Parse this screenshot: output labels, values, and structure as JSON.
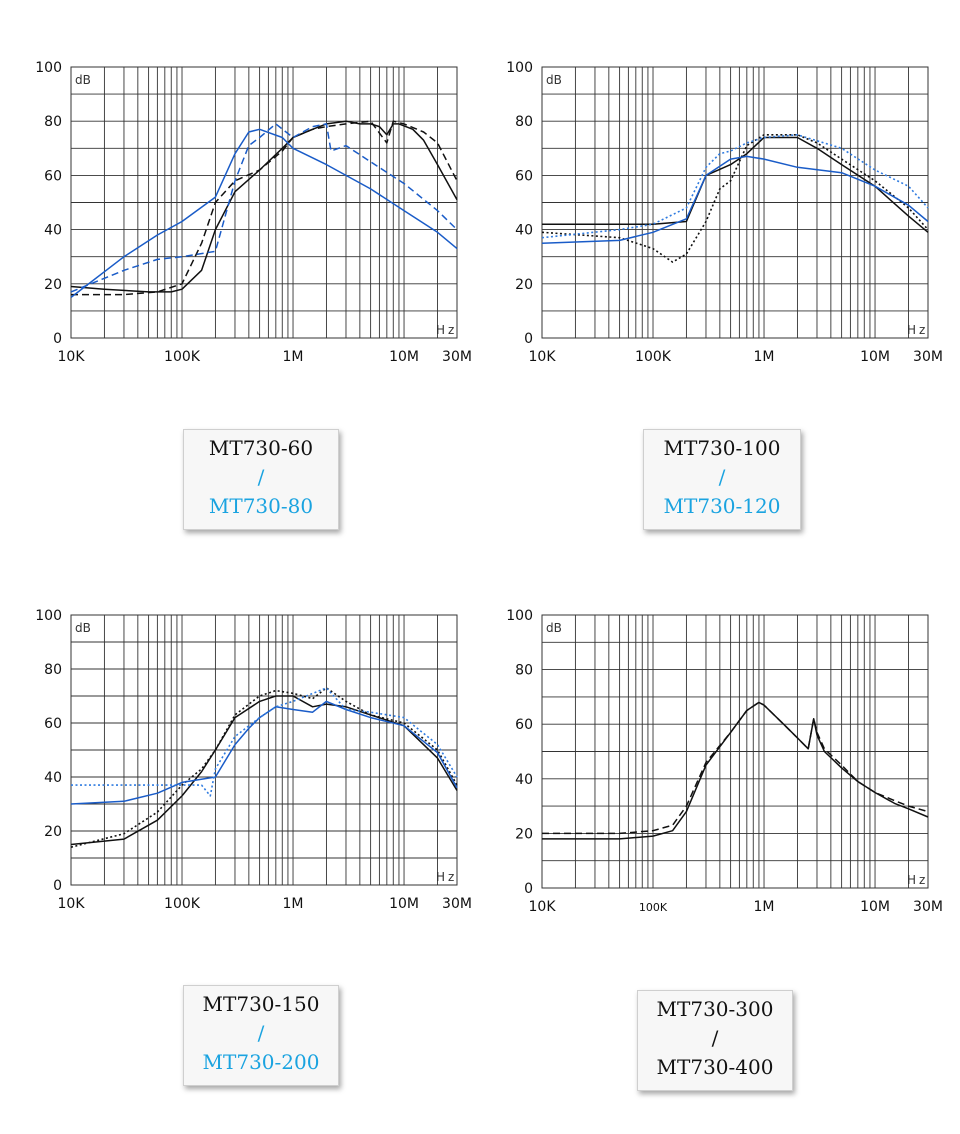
{
  "colors": {
    "black": "#111111",
    "blue": "#1a5cc8",
    "blue_dot": "#2f7be0",
    "cyan_label": "#1aa3e0"
  },
  "chart_data": [
    {
      "type": "line",
      "ylabel": "dB",
      "xlabel": "Hz",
      "x_scale": "log",
      "xlim": [
        10000,
        30000000
      ],
      "ylim": [
        0,
        100
      ],
      "y_ticks": [
        "0",
        "20",
        "40",
        "60",
        "80",
        "100"
      ],
      "x_ticks": [
        {
          "value": 10000,
          "label": "10K"
        },
        {
          "value": 100000,
          "label": "100K"
        },
        {
          "value": 1000000,
          "label": "1M"
        },
        {
          "value": 10000000,
          "label": "10M"
        },
        {
          "value": 30000000,
          "label": "30M"
        }
      ],
      "grid": true,
      "series": [
        {
          "color": "black",
          "style": "solid",
          "x": [
            10000,
            20000,
            50000,
            80000,
            100000,
            150000,
            200000,
            300000,
            500000,
            800000,
            1000000,
            1500000,
            2000000,
            3000000,
            4000000,
            5000000,
            6000000,
            7000000,
            8000000,
            9000000,
            12000000,
            15000000,
            20000000,
            30000000
          ],
          "y": [
            19,
            18,
            17,
            17,
            18,
            25,
            40,
            54,
            62,
            70,
            74,
            77,
            79,
            80,
            79,
            79,
            78,
            75,
            79,
            79,
            77,
            73,
            64,
            51
          ]
        },
        {
          "color": "black",
          "style": "dashed",
          "x": [
            10000,
            30000,
            60000,
            100000,
            150000,
            200000,
            300000,
            500000,
            800000,
            1000000,
            1500000,
            2000000,
            3000000,
            5000000,
            7000000,
            8000000,
            10000000,
            15000000,
            20000000,
            30000000
          ],
          "y": [
            16,
            16,
            17,
            20,
            35,
            50,
            58,
            62,
            69,
            74,
            77,
            78,
            79,
            80,
            72,
            80,
            79,
            76,
            72,
            58
          ]
        },
        {
          "color": "blue",
          "style": "solid",
          "x": [
            10000,
            30000,
            60000,
            100000,
            200000,
            300000,
            400000,
            500000,
            800000,
            1000000,
            2000000,
            5000000,
            10000000,
            20000000,
            30000000
          ],
          "y": [
            15,
            30,
            38,
            43,
            52,
            68,
            76,
            77,
            74,
            70,
            64,
            55,
            47,
            39,
            33
          ]
        },
        {
          "color": "blue",
          "style": "dashed",
          "x": [
            10000,
            30000,
            60000,
            100000,
            200000,
            300000,
            400000,
            500000,
            700000,
            1000000,
            1500000,
            2000000,
            2200000,
            3000000,
            5000000,
            10000000,
            20000000,
            30000000
          ],
          "y": [
            17,
            25,
            29,
            30,
            32,
            58,
            71,
            74,
            79,
            74,
            78,
            79,
            69,
            71,
            65,
            57,
            47,
            40
          ]
        }
      ]
    },
    {
      "type": "line",
      "ylabel": "dB",
      "xlabel": "Hz",
      "x_scale": "log",
      "xlim": [
        10000,
        30000000
      ],
      "ylim": [
        0,
        100
      ],
      "y_ticks": [
        "0",
        "20",
        "40",
        "60",
        "80",
        "100"
      ],
      "x_ticks": [
        {
          "value": 10000,
          "label": "10K"
        },
        {
          "value": 100000,
          "label": "100K"
        },
        {
          "value": 1000000,
          "label": "1M"
        },
        {
          "value": 10000000,
          "label": "10M"
        },
        {
          "value": 30000000,
          "label": "30M"
        }
      ],
      "grid": true,
      "series": [
        {
          "color": "black",
          "style": "solid",
          "x": [
            10000,
            50000,
            100000,
            200000,
            300000,
            500000,
            700000,
            1000000,
            2000000,
            3000000,
            5000000,
            10000000,
            20000000,
            30000000
          ],
          "y": [
            42,
            42,
            42,
            43,
            60,
            64,
            68,
            74,
            74,
            70,
            64,
            56,
            45,
            39
          ]
        },
        {
          "color": "black",
          "style": "dotted",
          "x": [
            10000,
            50000,
            100000,
            150000,
            200000,
            300000,
            400000,
            500000,
            700000,
            1000000,
            2000000,
            3000000,
            5000000,
            10000000,
            20000000,
            30000000
          ],
          "y": [
            39,
            37,
            33,
            28,
            31,
            43,
            55,
            58,
            71,
            75,
            75,
            72,
            66,
            58,
            48,
            40
          ]
        },
        {
          "color": "blue",
          "style": "solid",
          "x": [
            10000,
            50000,
            100000,
            200000,
            300000,
            500000,
            700000,
            1000000,
            2000000,
            5000000,
            10000000,
            20000000,
            30000000
          ],
          "y": [
            35,
            36,
            39,
            44,
            60,
            66,
            67,
            66,
            63,
            61,
            56,
            49,
            43
          ]
        },
        {
          "color": "blue",
          "style": "dotted",
          "x": [
            10000,
            50000,
            100000,
            200000,
            300000,
            400000,
            500000,
            700000,
            1000000,
            2000000,
            5000000,
            10000000,
            20000000,
            30000000
          ],
          "y": [
            37,
            40,
            42,
            48,
            63,
            68,
            69,
            72,
            74,
            75,
            70,
            62,
            56,
            48
          ]
        }
      ]
    },
    {
      "type": "line",
      "ylabel": "dB",
      "xlabel": "Hz",
      "x_scale": "log",
      "xlim": [
        10000,
        30000000
      ],
      "ylim": [
        0,
        100
      ],
      "y_ticks": [
        "0",
        "20",
        "40",
        "60",
        "80",
        "100"
      ],
      "x_ticks": [
        {
          "value": 10000,
          "label": "10K"
        },
        {
          "value": 100000,
          "label": "100K"
        },
        {
          "value": 1000000,
          "label": "1M"
        },
        {
          "value": 10000000,
          "label": "10M"
        },
        {
          "value": 30000000,
          "label": "30M"
        }
      ],
      "grid": true,
      "series": [
        {
          "color": "black",
          "style": "solid",
          "x": [
            10000,
            30000,
            60000,
            100000,
            150000,
            200000,
            300000,
            500000,
            700000,
            1000000,
            1500000,
            2000000,
            3000000,
            5000000,
            10000000,
            20000000,
            30000000
          ],
          "y": [
            15,
            17,
            24,
            33,
            42,
            50,
            62,
            68,
            70,
            70,
            66,
            67,
            66,
            63,
            59,
            47,
            35
          ]
        },
        {
          "color": "black",
          "style": "dotted",
          "x": [
            10000,
            30000,
            60000,
            100000,
            150000,
            200000,
            300000,
            500000,
            700000,
            1000000,
            1500000,
            2000000,
            3000000,
            5000000,
            10000000,
            20000000,
            30000000
          ],
          "y": [
            14,
            19,
            27,
            37,
            43,
            50,
            63,
            70,
            72,
            71,
            69,
            73,
            68,
            63,
            60,
            50,
            37
          ]
        },
        {
          "color": "blue",
          "style": "solid",
          "x": [
            10000,
            30000,
            60000,
            100000,
            200000,
            300000,
            400000,
            500000,
            700000,
            1000000,
            1500000,
            2000000,
            3000000,
            5000000,
            10000000,
            20000000,
            30000000
          ],
          "y": [
            30,
            31,
            34,
            38,
            40,
            52,
            58,
            62,
            66,
            65,
            64,
            68,
            65,
            62,
            59,
            49,
            36
          ]
        },
        {
          "color": "blue",
          "style": "dotted",
          "x": [
            10000,
            100000,
            150000,
            180000,
            200000,
            300000,
            500000,
            700000,
            1000000,
            2000000,
            3000000,
            5000000,
            10000000,
            20000000,
            30000000
          ],
          "y": [
            37,
            37,
            37,
            33,
            43,
            55,
            62,
            66,
            68,
            73,
            65,
            64,
            62,
            52,
            40
          ]
        }
      ]
    },
    {
      "type": "line",
      "ylabel": "dB",
      "xlabel": "Hz",
      "x_scale": "log",
      "xlim": [
        10000,
        30000000
      ],
      "ylim": [
        0,
        100
      ],
      "y_ticks": [
        "0",
        "20",
        "40",
        "60",
        "80",
        "100"
      ],
      "x_ticks": [
        {
          "value": 10000,
          "label": "10K"
        },
        {
          "value": 100000,
          "label": "100K"
        },
        {
          "value": 1000000,
          "label": "1M"
        },
        {
          "value": 10000000,
          "label": "10M"
        },
        {
          "value": 30000000,
          "label": "30M"
        }
      ],
      "grid": true,
      "series": [
        {
          "color": "black",
          "style": "solid",
          "x": [
            10000,
            50000,
            100000,
            150000,
            200000,
            300000,
            500000,
            700000,
            900000,
            1000000,
            1500000,
            2000000,
            2500000,
            2800000,
            3000000,
            3500000,
            5000000,
            7000000,
            10000000,
            15000000,
            20000000,
            30000000
          ],
          "y": [
            18,
            18,
            19,
            21,
            28,
            45,
            57,
            65,
            68,
            67,
            60,
            55,
            51,
            62,
            56,
            50,
            44,
            39,
            35,
            31,
            29,
            26
          ]
        },
        {
          "color": "black",
          "style": "dashed",
          "x": [
            10000,
            50000,
            100000,
            150000,
            200000,
            300000,
            500000,
            700000,
            900000,
            1000000,
            1500000,
            2000000,
            2500000,
            2800000,
            3000000,
            3500000,
            5000000,
            7000000,
            10000000,
            15000000,
            20000000,
            30000000
          ],
          "y": [
            20,
            20,
            21,
            23,
            30,
            46,
            57,
            65,
            68,
            67,
            60,
            55,
            51,
            62,
            57,
            51,
            45,
            39,
            35,
            32,
            30,
            28
          ]
        }
      ]
    }
  ],
  "legends": [
    {
      "line1": "MT730-60",
      "sep": "/",
      "line2": "MT730-80",
      "accent": true
    },
    {
      "line1": "MT730-100",
      "sep": "/",
      "line2": "MT730-120",
      "accent": true
    },
    {
      "line1": "MT730-150",
      "sep": "/",
      "line2": "MT730-200",
      "accent": true
    },
    {
      "line1": "MT730-300",
      "sep": "/",
      "line2": "MT730-400",
      "accent": false
    }
  ]
}
